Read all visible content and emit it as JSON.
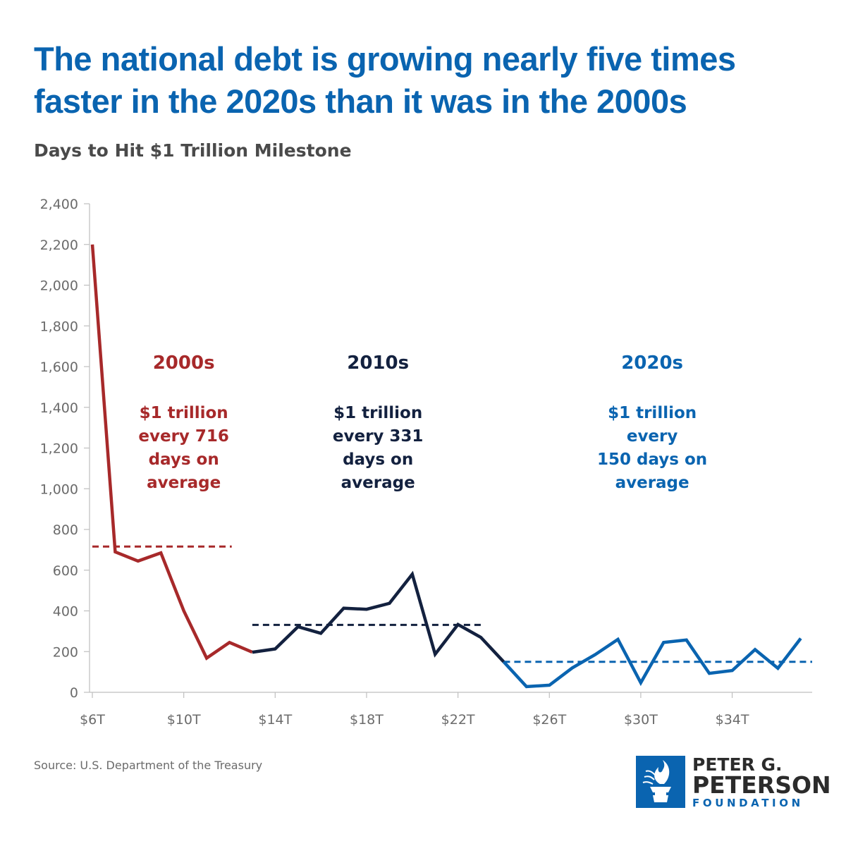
{
  "chart_data": {
    "type": "line",
    "title": "The national debt is growing nearly five times faster in the 2020s than it was in the 2000s",
    "subtitle": "Days to Hit $1 Trillion Milestone",
    "xlabel": "",
    "ylabel": "",
    "xlim": [
      6,
      37.5
    ],
    "ylim": [
      0,
      2400
    ],
    "x_ticks": [
      6,
      10,
      14,
      18,
      22,
      26,
      30,
      34
    ],
    "x_tick_labels": [
      "$6T",
      "$10T",
      "$14T",
      "$18T",
      "$22T",
      "$26T",
      "$30T",
      "$34T"
    ],
    "y_ticks": [
      0,
      200,
      400,
      600,
      800,
      1000,
      1200,
      1400,
      1600,
      1800,
      2000,
      2200,
      2400
    ],
    "y_tick_labels": [
      "0",
      "200",
      "400",
      "600",
      "800",
      "1,000",
      "1,200",
      "1,400",
      "1,600",
      "1,800",
      "2,000",
      "2,200",
      "2,400"
    ],
    "grid": false,
    "series": [
      {
        "name": "2000s",
        "color": "#a7292a",
        "points": [
          [
            6,
            2200
          ],
          [
            7,
            690
          ],
          [
            8,
            645
          ],
          [
            9,
            685
          ],
          [
            10,
            400
          ],
          [
            11,
            168
          ],
          [
            12,
            245
          ],
          [
            13,
            197
          ]
        ]
      },
      {
        "name": "2010s",
        "color": "#13213f",
        "points": [
          [
            13,
            197
          ],
          [
            14,
            213
          ],
          [
            15,
            322
          ],
          [
            16,
            290
          ],
          [
            17,
            413
          ],
          [
            18,
            408
          ],
          [
            19,
            437
          ],
          [
            20,
            580
          ],
          [
            21,
            187
          ],
          [
            22,
            333
          ],
          [
            23,
            270
          ],
          [
            24,
            150
          ]
        ]
      },
      {
        "name": "2020s",
        "color": "#0a64b0",
        "points": [
          [
            24,
            150
          ],
          [
            25,
            28
          ],
          [
            26,
            35
          ],
          [
            27,
            120
          ],
          [
            28,
            185
          ],
          [
            29,
            260
          ],
          [
            30,
            47
          ],
          [
            31,
            245
          ],
          [
            32,
            257
          ],
          [
            33,
            93
          ],
          [
            34,
            107
          ],
          [
            35,
            210
          ],
          [
            36,
            118
          ],
          [
            37,
            265
          ]
        ]
      }
    ],
    "averages": [
      {
        "value": 716,
        "x_range": [
          6,
          12.1
        ],
        "color": "#a7292a"
      },
      {
        "value": 331,
        "x_range": [
          13,
          23.1
        ],
        "color": "#13213f"
      },
      {
        "value": 150,
        "x_range": [
          24,
          37.5
        ],
        "color": "#0a64b0"
      }
    ],
    "annotations": [
      {
        "heading": "2000s",
        "lines": [
          "$1 trillion",
          "every 716",
          "days on",
          "average"
        ],
        "color": "#a7292a",
        "x": 10,
        "y_top": 1590
      },
      {
        "heading": "2010s",
        "lines": [
          "$1 trillion",
          "every 331",
          "days on",
          "average"
        ],
        "color": "#13213f",
        "x": 18.5,
        "y_top": 1590
      },
      {
        "heading": "2020s",
        "lines": [
          "$1 trillion",
          "every",
          "150 days on",
          "average"
        ],
        "color": "#0a64b0",
        "x": 30.5,
        "y_top": 1590
      }
    ]
  },
  "source": "Source: U.S. Department of the Treasury",
  "logo": {
    "line1": "PETER G.",
    "line2": "PETERSON",
    "line3": "FOUNDATION",
    "mark_icon": "torch-icon",
    "color": "#0a64b0"
  }
}
